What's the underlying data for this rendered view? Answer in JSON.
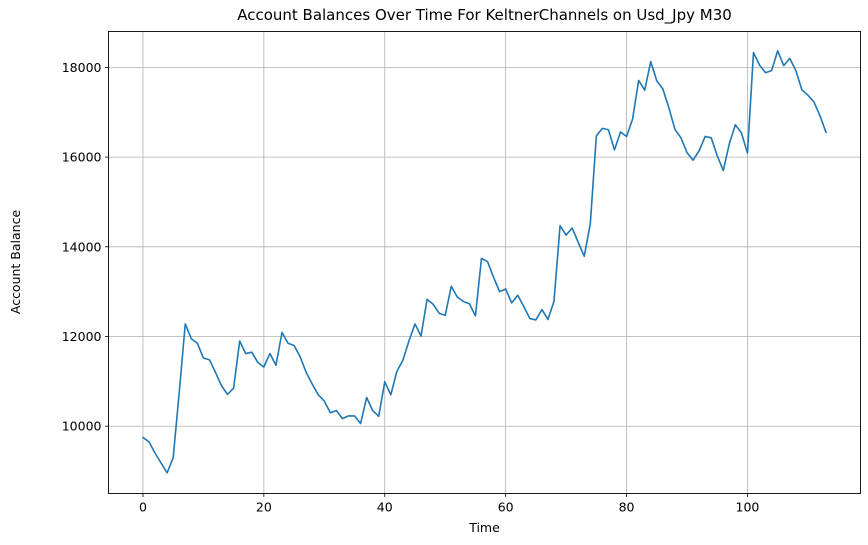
{
  "chart_data": {
    "type": "line",
    "title": "Account Balances Over Time For KeltnerChannels on Usd_Jpy M30",
    "xlabel": "Time",
    "ylabel": "Account Balance",
    "xlim": [
      -5.7,
      118.7
    ],
    "ylim": [
      8500,
      18800
    ],
    "x_ticks": [
      0,
      20,
      40,
      60,
      80,
      100
    ],
    "y_ticks": [
      10000,
      12000,
      14000,
      16000,
      18000
    ],
    "grid": true,
    "series": [
      {
        "color": "#1f77b4",
        "x": [
          0,
          1,
          2,
          3,
          4,
          5,
          6,
          7,
          8,
          9,
          10,
          11,
          12,
          13,
          14,
          15,
          16,
          17,
          18,
          19,
          20,
          21,
          22,
          23,
          24,
          25,
          26,
          27,
          28,
          29,
          30,
          31,
          32,
          33,
          34,
          35,
          36,
          37,
          38,
          39,
          40,
          41,
          42,
          43,
          44,
          45,
          46,
          47,
          48,
          49,
          50,
          51,
          52,
          53,
          54,
          55,
          56,
          57,
          58,
          59,
          60,
          61,
          62,
          63,
          64,
          65,
          66,
          67,
          68,
          69,
          70,
          71,
          72,
          73,
          74,
          75,
          76,
          77,
          78,
          79,
          80,
          81,
          82,
          83,
          84,
          85,
          86,
          87,
          88,
          89,
          90,
          91,
          92,
          93,
          94,
          95,
          96,
          97,
          98,
          99,
          100,
          101,
          102,
          103,
          104,
          105,
          106,
          107,
          108,
          109,
          110,
          111,
          112,
          113
        ],
        "values": [
          9750,
          9650,
          9400,
          9180,
          8960,
          9300,
          10750,
          12280,
          11950,
          11850,
          11520,
          11480,
          11200,
          10900,
          10710,
          10850,
          11900,
          11620,
          11650,
          11420,
          11320,
          11620,
          11360,
          12090,
          11850,
          11800,
          11550,
          11200,
          10940,
          10700,
          10560,
          10300,
          10350,
          10170,
          10230,
          10230,
          10060,
          10640,
          10350,
          10220,
          10990,
          10700,
          11220,
          11470,
          11900,
          12280,
          12010,
          12830,
          12720,
          12520,
          12470,
          13120,
          12880,
          12780,
          12730,
          12460,
          13740,
          13670,
          13320,
          13000,
          13060,
          12750,
          12920,
          12670,
          12400,
          12370,
          12600,
          12380,
          12790,
          14470,
          14260,
          14420,
          14100,
          13790,
          14510,
          16470,
          16640,
          16610,
          16160,
          16560,
          16460,
          16850,
          17710,
          17490,
          18130,
          17700,
          17520,
          17100,
          16620,
          16430,
          16100,
          15930,
          16140,
          16460,
          16430,
          16030,
          15700,
          16300,
          16720,
          16540,
          16090,
          18330,
          18050,
          17880,
          17930,
          18370,
          18040,
          18200,
          17930,
          17500,
          17380,
          17230,
          16920,
          16550
        ]
      }
    ]
  }
}
